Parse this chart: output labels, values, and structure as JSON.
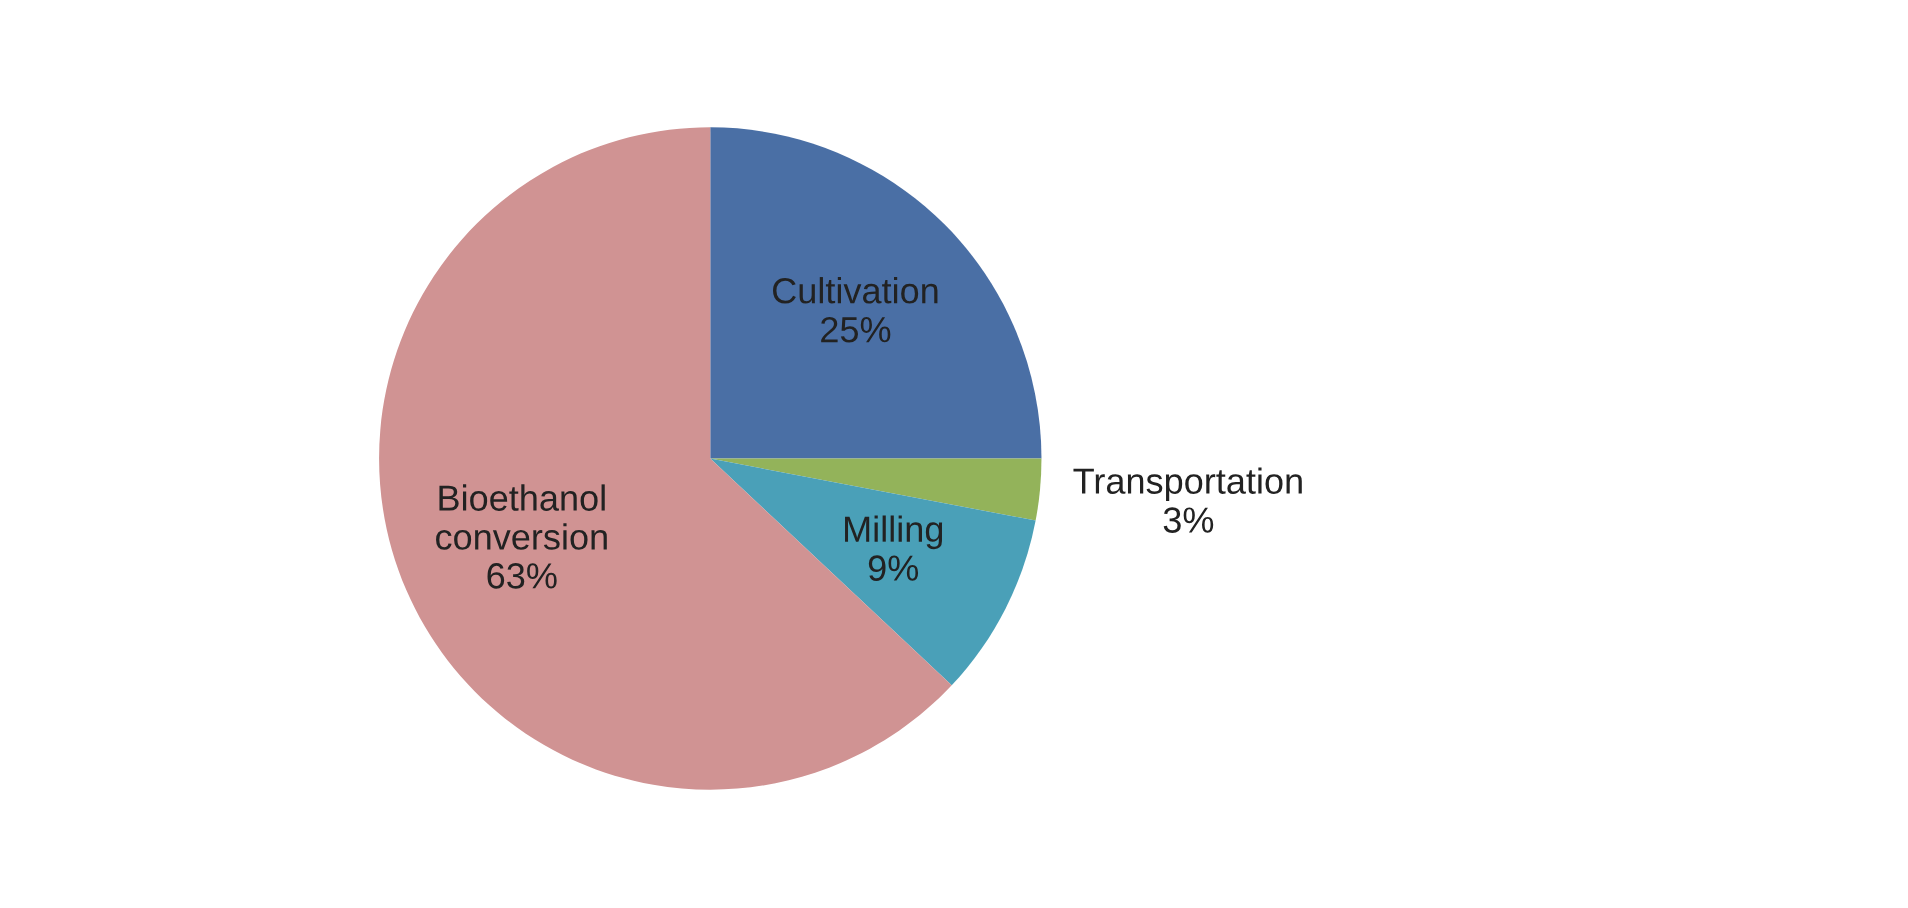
{
  "chart_data": {
    "type": "pie",
    "categories": [
      "Cultivation",
      "Transportation",
      "Milling",
      "Bioethanol conversion"
    ],
    "values": [
      25,
      3,
      9,
      63
    ],
    "value_labels": [
      "25%",
      "3%",
      "9%",
      "63%"
    ],
    "colors": [
      "#4a6fa5",
      "#93b35a",
      "#4aa0b8",
      "#d09393"
    ],
    "legend": false
  }
}
